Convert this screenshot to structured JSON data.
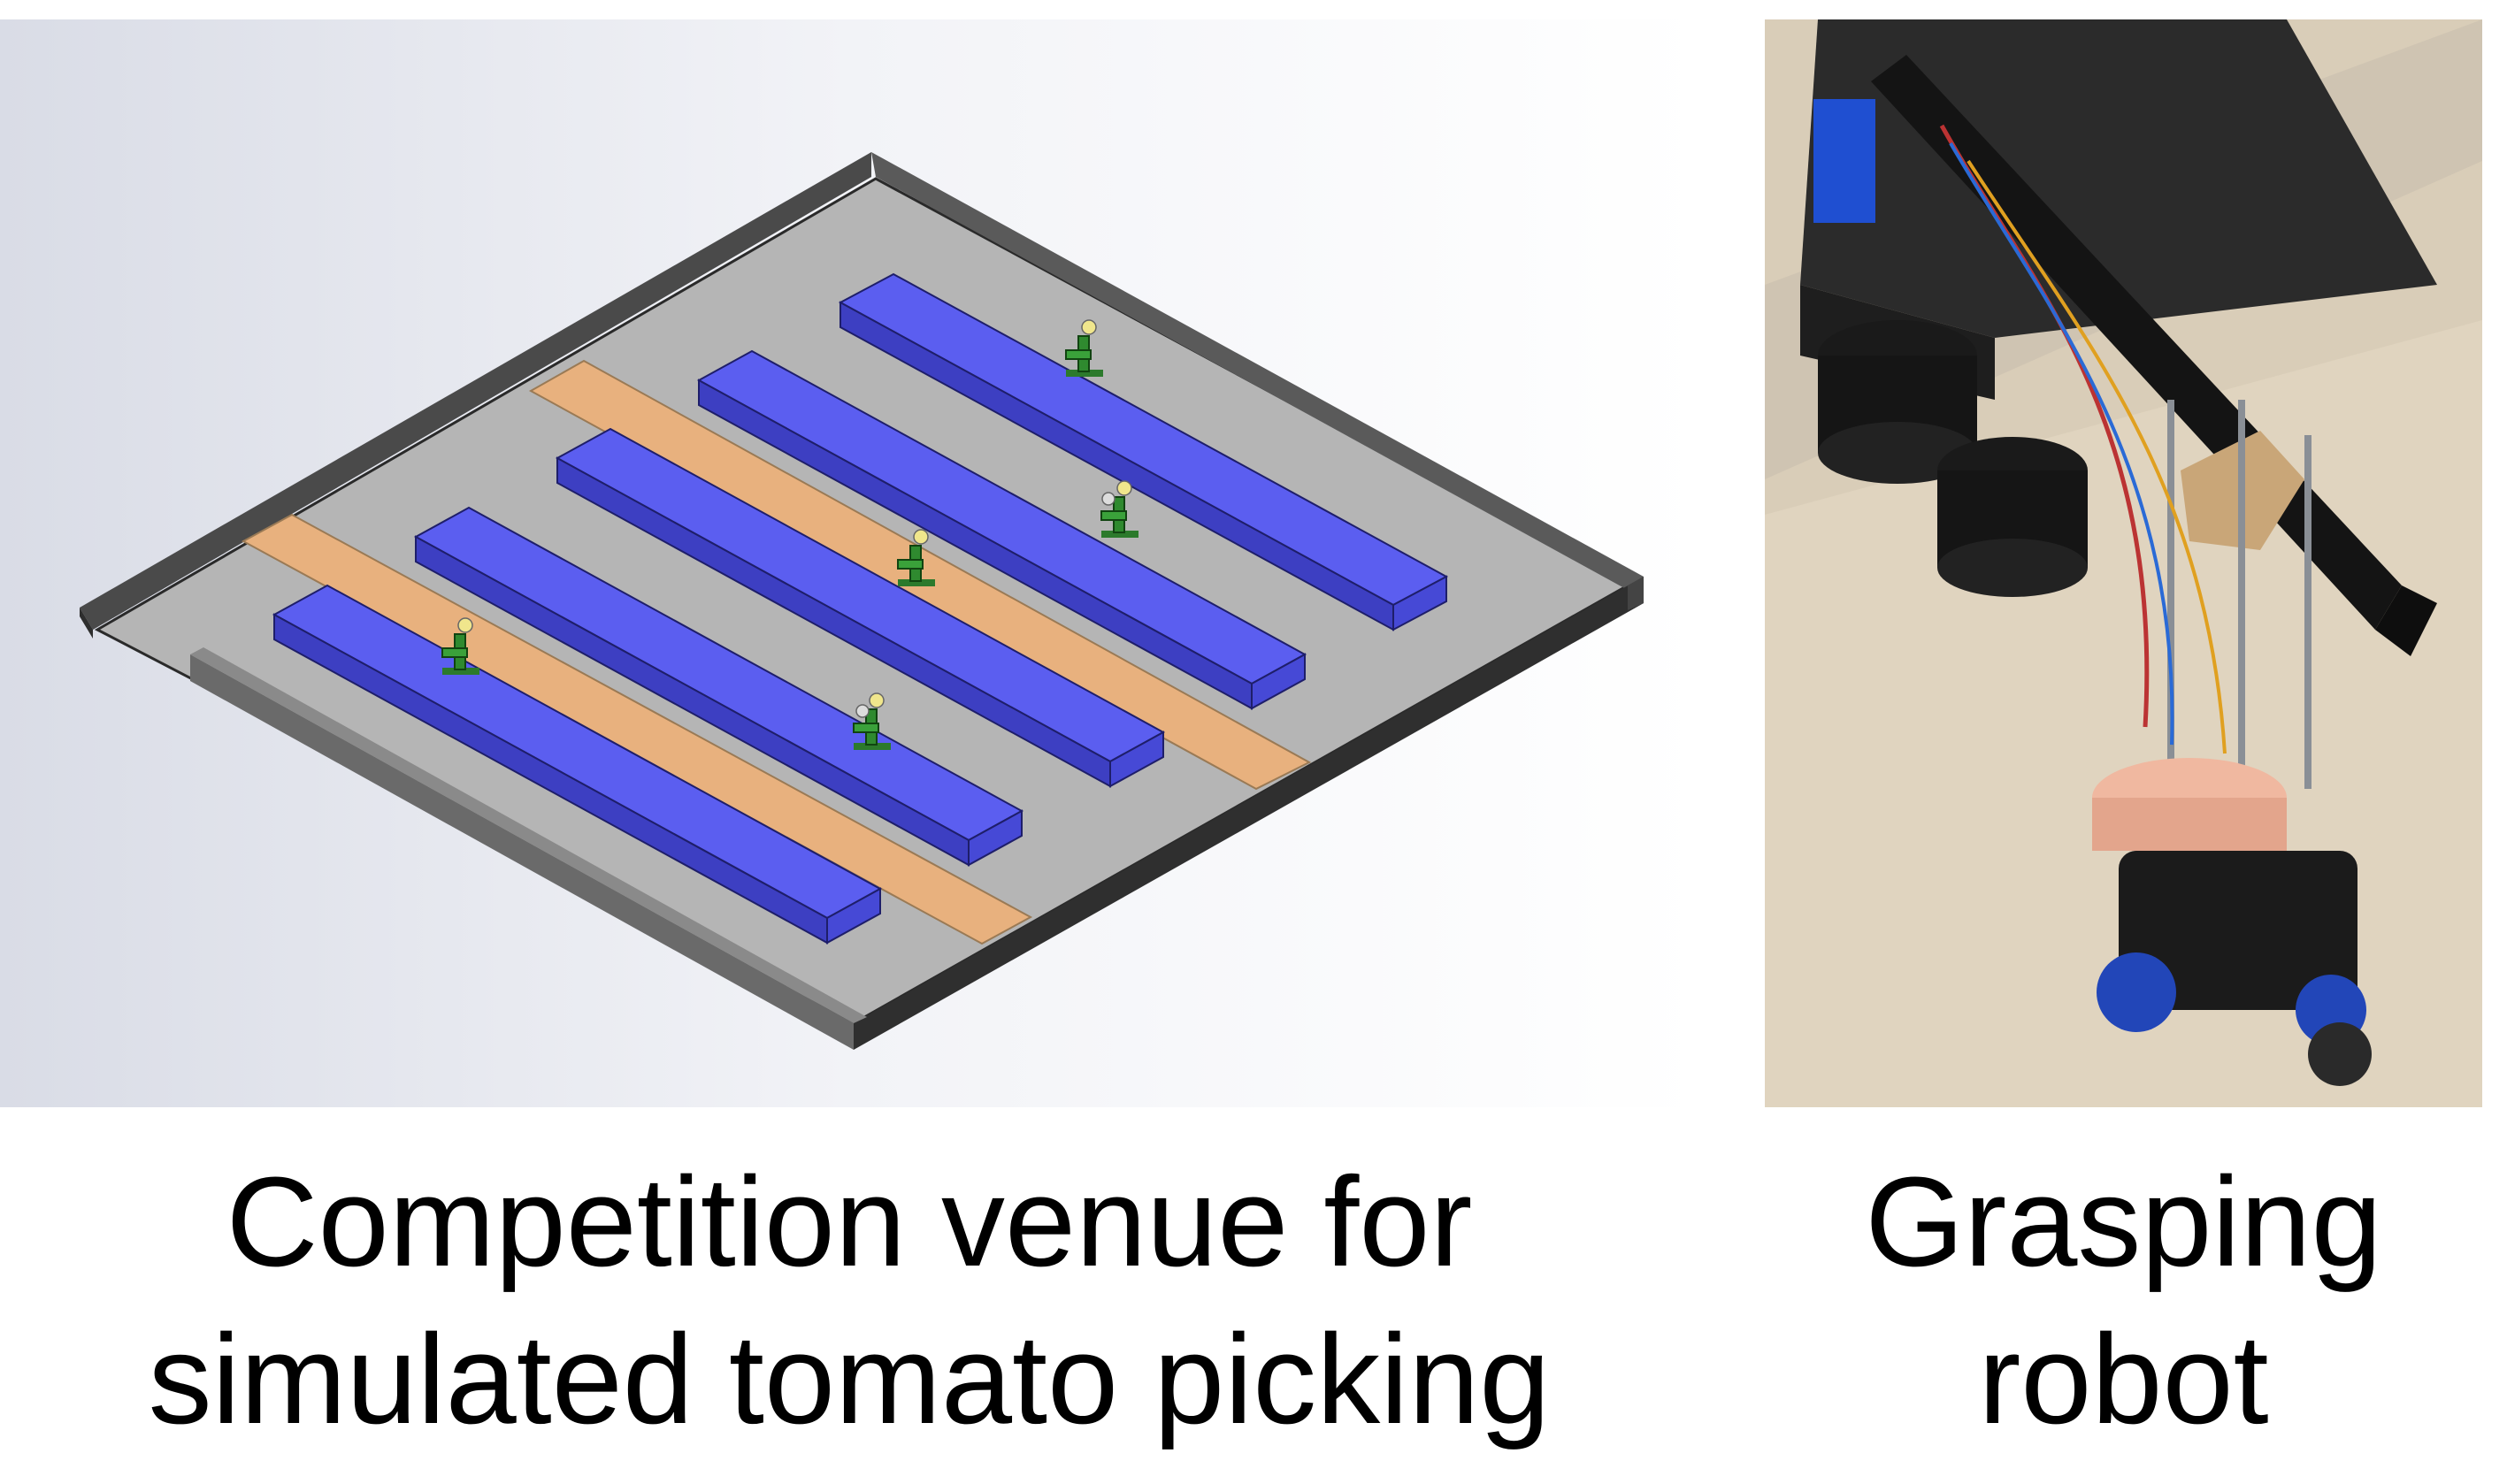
{
  "figure": {
    "left_panel": {
      "caption_line1": "Competition venue for",
      "caption_line2": "simulated tomato picking"
    },
    "right_panel": {
      "caption_line1": "Grasping",
      "caption_line2": "robot"
    }
  },
  "colors": {
    "background_gradient_left": "#d8dde8",
    "floor": "#b3b3b3",
    "wall": "#3a3a3a",
    "ridge_top": "#5b5ef0",
    "ridge_side": "#3f41c8",
    "path": "#e8b17e",
    "plant": "#2f8a2f"
  }
}
